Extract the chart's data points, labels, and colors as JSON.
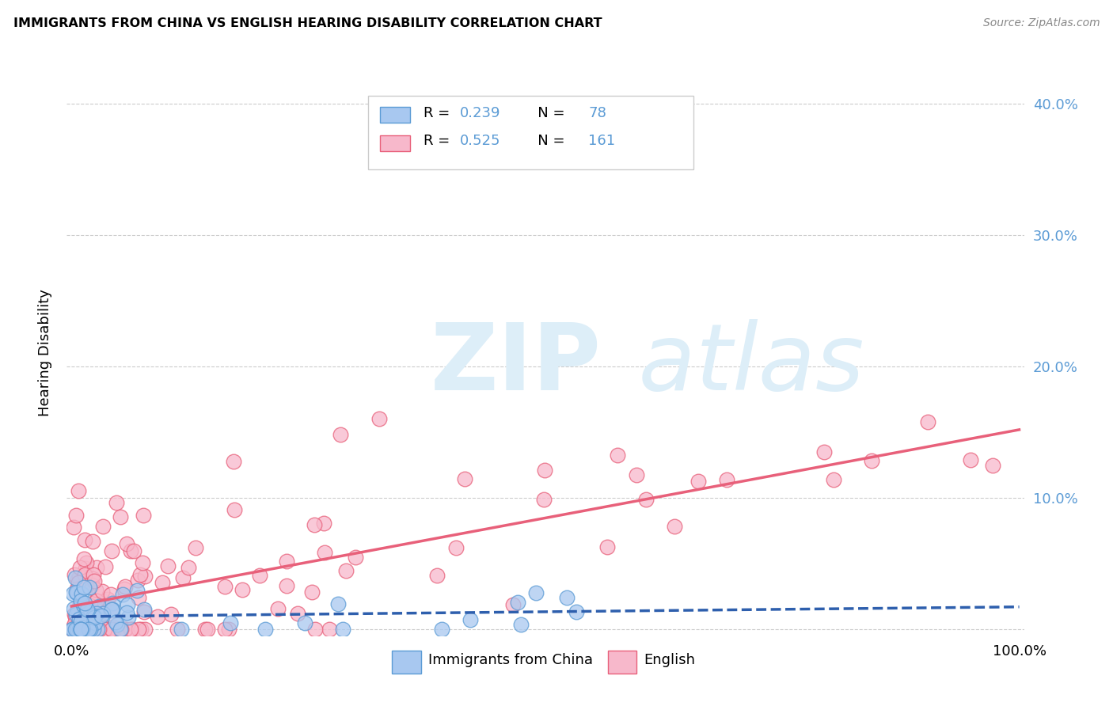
{
  "title": "IMMIGRANTS FROM CHINA VS ENGLISH HEARING DISABILITY CORRELATION CHART",
  "source": "Source: ZipAtlas.com",
  "ylabel": "Hearing Disability",
  "legend_label1": "Immigrants from China",
  "legend_label2": "English",
  "blue_color": "#a8c8f0",
  "pink_color": "#f7b8cb",
  "blue_edge_color": "#5b9bd5",
  "pink_edge_color": "#e8607a",
  "blue_line_color": "#2e5fad",
  "pink_line_color": "#e8607a",
  "tick_color": "#5b9bd5",
  "grid_color": "#cccccc",
  "background_color": "#ffffff",
  "watermark_color": "#ddeef8",
  "title_color": "#000000",
  "source_color": "#888888",
  "ylabel_color": "#000000",
  "legend_text_color": "#000000",
  "legend_num_color": "#5b9bd5",
  "legend_R1": "R = 0.239",
  "legend_N1": "N = 78",
  "legend_R2": "R = 0.525",
  "legend_N2": "N = 161",
  "xlim": [
    0,
    1.0
  ],
  "ylim": [
    0,
    0.42
  ],
  "yticks": [
    0.0,
    0.1,
    0.2,
    0.3,
    0.4
  ],
  "ytick_labels": [
    "",
    "10.0%",
    "20.0%",
    "30.0%",
    "40.0%"
  ]
}
